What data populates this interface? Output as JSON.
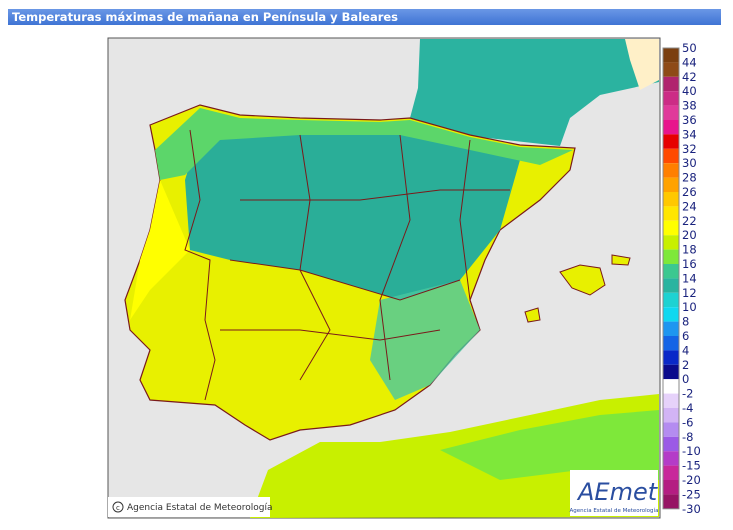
{
  "header": {
    "title": "Temperaturas máximas de mañana en Península y Baleares"
  },
  "legend": [
    {
      "label": 50,
      "color": "#7b3f10"
    },
    {
      "label": 44,
      "color": "#8e4a17"
    },
    {
      "label": 42,
      "color": "#b0246e"
    },
    {
      "label": 40,
      "color": "#cc2c86"
    },
    {
      "label": 38,
      "color": "#e03a9a"
    },
    {
      "label": 36,
      "color": "#e8158c"
    },
    {
      "label": 34,
      "color": "#e60000"
    },
    {
      "label": 32,
      "color": "#ff4a00"
    },
    {
      "label": 30,
      "color": "#ff7f00"
    },
    {
      "label": 28,
      "color": "#ffa200"
    },
    {
      "label": 26,
      "color": "#ffc800"
    },
    {
      "label": 24,
      "color": "#ffe600"
    },
    {
      "label": 22,
      "color": "#ffff00"
    },
    {
      "label": 20,
      "color": "#c8f000"
    },
    {
      "label": 18,
      "color": "#7ee83a"
    },
    {
      "label": 16,
      "color": "#3cc890"
    },
    {
      "label": 14,
      "color": "#2ab4a0"
    },
    {
      "label": 12,
      "color": "#1ed2d2"
    },
    {
      "label": 10,
      "color": "#10d8f0"
    },
    {
      "label": 8,
      "color": "#1e96f0"
    },
    {
      "label": 6,
      "color": "#1464e6"
    },
    {
      "label": 4,
      "color": "#0a28c8"
    },
    {
      "label": 2,
      "color": "#0a0a8c"
    },
    {
      "label": 0,
      "color": "#ffffff"
    },
    {
      "label": -2,
      "color": "#e6d2fa"
    },
    {
      "label": -4,
      "color": "#d2b4f5"
    },
    {
      "label": -6,
      "color": "#b48cf0"
    },
    {
      "label": -8,
      "color": "#9b5ae6"
    },
    {
      "label": -10,
      "color": "#b43cc8"
    },
    {
      "label": -15,
      "color": "#c8289b"
    },
    {
      "label": -20,
      "color": "#b41e82"
    },
    {
      "label": -25,
      "color": "#961464"
    },
    {
      "label": -30,
      "color": "#780a50"
    }
  ],
  "footer": {
    "copyright": "Agencia Estatal de Meteorología",
    "logo": "AEmet",
    "logo_subtitle": "Agencia Estatal de Meteorología"
  }
}
